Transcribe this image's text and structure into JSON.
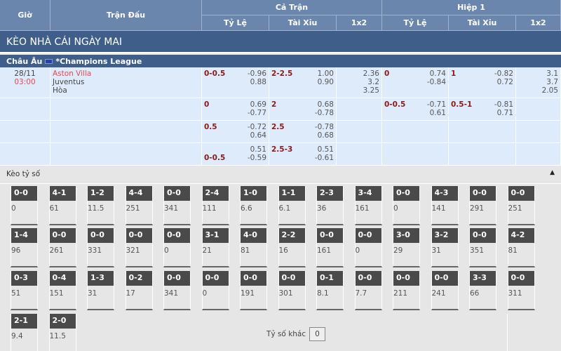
{
  "header": {
    "gio": "Giờ",
    "tran_dau": "Trận Đấu",
    "ca_tran": "Cả Trận",
    "hiep1": "Hiệp 1",
    "ty_le": "Tỷ Lệ",
    "tai_xiu": "Tài Xỉu",
    "x12": "1x2"
  },
  "title": "KÈO NHÀ CÁI NGÀY MAI",
  "league": {
    "region": "Châu Âu",
    "name": "*Champions League",
    "flag_icon": "eu-flag-icon"
  },
  "match": {
    "date": "28/11",
    "time": "03:00",
    "home": "Aston Villa",
    "away": "Juventus",
    "draw": "Hòa"
  },
  "rows": [
    {
      "ft_hdp": {
        "line": "0-0.5",
        "a": "-0.96",
        "b": "0.88"
      },
      "ft_ou": {
        "line": "2-2.5",
        "a": "1.00",
        "b": "0.90"
      },
      "ft_1x2": [
        "2.36",
        "3.2",
        "3.25"
      ],
      "h1_hdp": {
        "line": "0",
        "a": "0.74",
        "b": "-0.84"
      },
      "h1_ou": {
        "line": "1",
        "a": "-0.82",
        "b": "0.72"
      },
      "h1_1x2": [
        "3.1",
        "3.7",
        "2.05"
      ]
    },
    {
      "ft_hdp": {
        "line": "0",
        "a": "0.69",
        "b": "-0.77"
      },
      "ft_ou": {
        "line": "2",
        "a": "0.68",
        "b": "-0.78"
      },
      "h1_hdp": {
        "line": "0-0.5",
        "a": "-0.71",
        "b": "0.61"
      },
      "h1_ou": {
        "line": "0.5-1",
        "a": "-0.81",
        "b": "0.71"
      }
    },
    {
      "ft_hdp": {
        "line": "0.5",
        "a": "-0.72",
        "b": "0.64"
      },
      "ft_ou": {
        "line": "2.5",
        "a": "-0.78",
        "b": "0.68"
      }
    },
    {
      "ft_hdp": {
        "line": "0-0.5",
        "a": "0.51",
        "b": "-0.59",
        "line_bottom": true
      },
      "ft_ou": {
        "line": "2.5-3",
        "a": "0.51",
        "b": "-0.61"
      }
    }
  ],
  "correct_score": {
    "label": "Kèo tỷ số",
    "other_label": "Tỷ số khác",
    "other_value": "0",
    "items": [
      [
        "0-0",
        "0"
      ],
      [
        "4-1",
        "61"
      ],
      [
        "1-2",
        "11.5"
      ],
      [
        "4-4",
        "251"
      ],
      [
        "0-0",
        "341"
      ],
      [
        "2-4",
        "111"
      ],
      [
        "1-0",
        "6.6"
      ],
      [
        "1-1",
        "6.1"
      ],
      [
        "2-3",
        "36"
      ],
      [
        "3-4",
        "161"
      ],
      [
        "0-0",
        "0"
      ],
      [
        "4-3",
        "141"
      ],
      [
        "0-0",
        "291"
      ],
      [
        "0-0",
        "251"
      ],
      [
        "1-4",
        "96"
      ],
      [
        "0-0",
        "261"
      ],
      [
        "0-0",
        "331"
      ],
      [
        "0-0",
        "321"
      ],
      [
        "0-0",
        "0"
      ],
      [
        "3-1",
        "21"
      ],
      [
        "4-0",
        "81"
      ],
      [
        "2-2",
        "16"
      ],
      [
        "0-0",
        "161"
      ],
      [
        "0-0",
        "0"
      ],
      [
        "3-0",
        "29"
      ],
      [
        "3-2",
        "31"
      ],
      [
        "0-0",
        "351"
      ],
      [
        "4-2",
        "81"
      ],
      [
        "0-3",
        "51"
      ],
      [
        "0-4",
        "151"
      ],
      [
        "1-3",
        "31"
      ],
      [
        "0-2",
        "17"
      ],
      [
        "0-0",
        "341"
      ],
      [
        "0-0",
        "0"
      ],
      [
        "0-0",
        "191"
      ],
      [
        "0-0",
        "301"
      ],
      [
        "0-1",
        "8.1"
      ],
      [
        "0-0",
        "7.7"
      ],
      [
        "0-0",
        "211"
      ],
      [
        "0-0",
        "241"
      ],
      [
        "3-3",
        "66"
      ],
      [
        "0-0",
        "311"
      ],
      [
        "2-1",
        "9.4"
      ],
      [
        "2-0",
        "11.5"
      ]
    ]
  }
}
